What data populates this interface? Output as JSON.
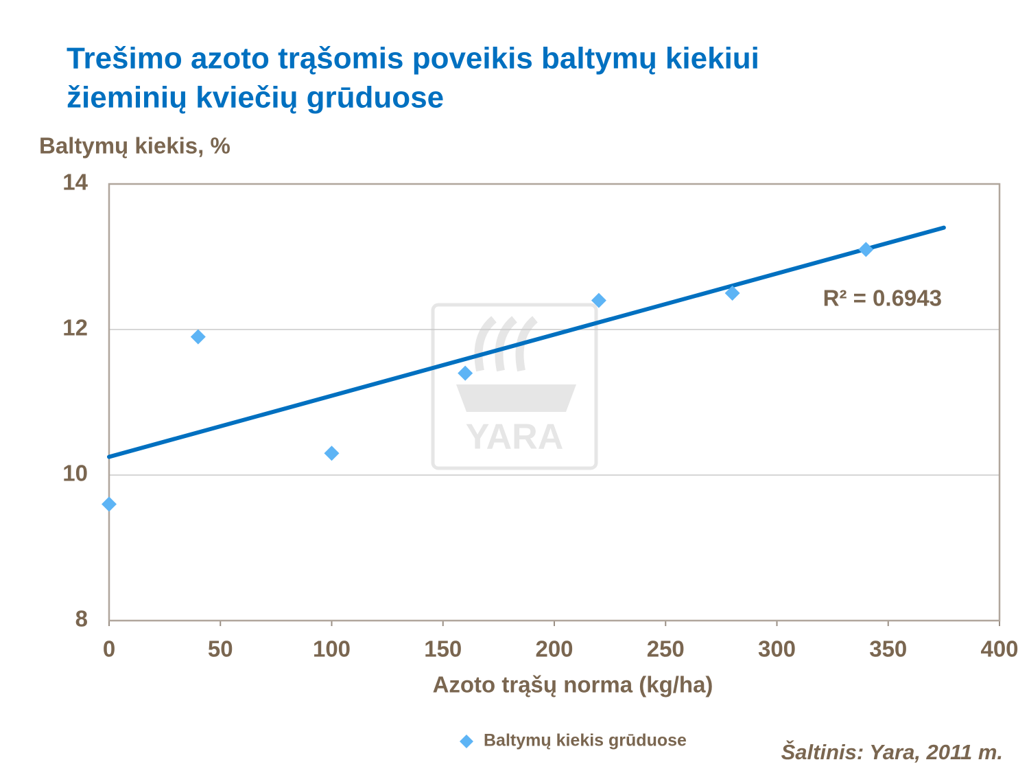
{
  "chart_data": {
    "type": "scatter",
    "title": [
      "Trešimo azoto trąšomis poveikis baltymų kiekiui",
      "žieminių kviečių grūduose"
    ],
    "y_label": "Baltymų kiekis, %",
    "x_label": "Azoto trąšų norma (kg/ha)",
    "xlim": [
      0,
      400
    ],
    "xticks": [
      0,
      50,
      100,
      150,
      200,
      250,
      300,
      350,
      400
    ],
    "ylim": [
      8,
      14
    ],
    "yticks": [
      8,
      10,
      12,
      14
    ],
    "grid": true,
    "series": [
      {
        "name": "Baltymų kiekis grūduose",
        "color": "#5db4f5",
        "x": [
          0,
          40,
          100,
          160,
          220,
          280,
          340
        ],
        "values": [
          9.6,
          11.9,
          10.3,
          11.4,
          12.4,
          12.5,
          13.1
        ]
      }
    ],
    "trendline": {
      "x": [
        0,
        375
      ],
      "values": [
        10.25,
        13.4
      ],
      "color": "#0070c0"
    },
    "annotation": "R² = 0.6943",
    "watermark": "YARA",
    "source": "Šaltinis:  Yara, 2011 m."
  }
}
